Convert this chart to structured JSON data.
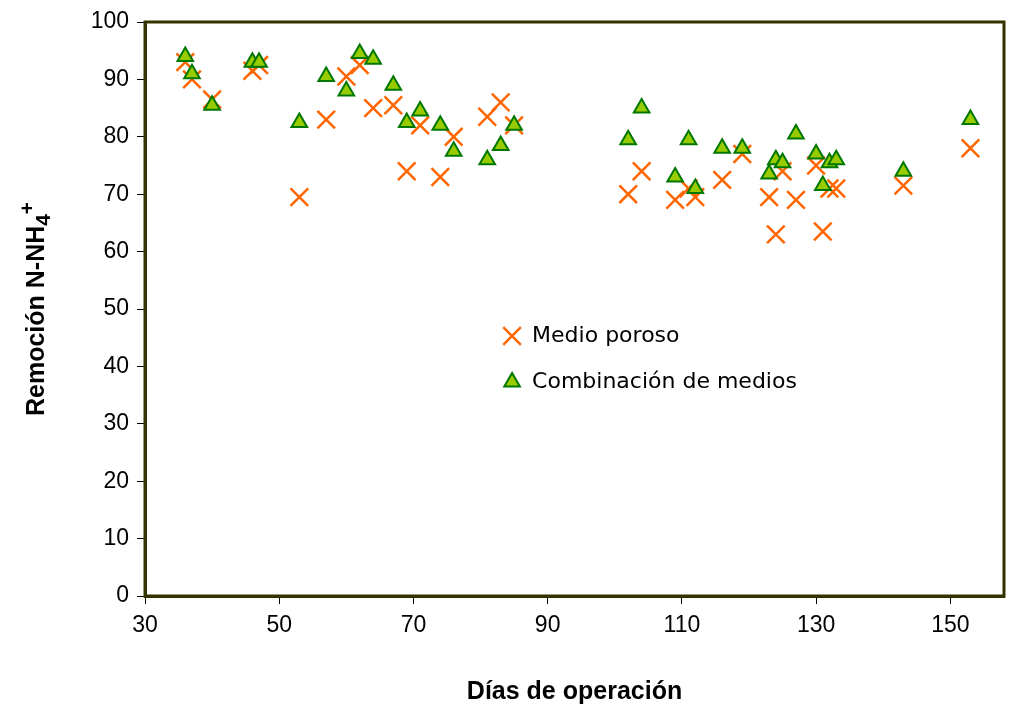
{
  "chart_data": {
    "type": "scatter",
    "xlabel": "Días de operación",
    "ylabel": "Remoción N-NH$_{4}$$^{+}$",
    "xlim": [
      30,
      158
    ],
    "xticks": [
      30,
      50,
      70,
      90,
      110,
      130,
      150
    ],
    "ylim": [
      0,
      100
    ],
    "yticks": [
      0,
      10,
      20,
      30,
      40,
      50,
      60,
      70,
      80,
      90,
      100
    ],
    "grid": false,
    "legend": "center",
    "series": [
      {
        "name": "Medio poroso",
        "color": "#ff6600",
        "marker": "cross",
        "x": [
          36,
          37,
          40,
          46,
          47,
          53,
          57,
          60,
          62,
          64,
          67,
          69,
          71,
          74,
          76,
          81,
          83,
          85,
          102,
          104,
          109,
          111,
          112,
          116,
          119,
          123,
          124,
          125,
          127,
          130,
          131,
          132,
          133,
          143,
          153
        ],
        "values": [
          93,
          90,
          86.5,
          91.5,
          92.5,
          69.5,
          83,
          90.5,
          92.5,
          85,
          85.5,
          74,
          82,
          73,
          80,
          83.5,
          86,
          82,
          70,
          74,
          69,
          71,
          69.5,
          72.5,
          77,
          69.5,
          63,
          74,
          69,
          75,
          63.5,
          71,
          71,
          71.5,
          78
        ]
      },
      {
        "name": "Combinación de medios",
        "color": "#99cc00",
        "marker": "triangle",
        "x": [
          36,
          37,
          40,
          46,
          47,
          53,
          57,
          60,
          62,
          64,
          67,
          69,
          71,
          74,
          76,
          81,
          83,
          85,
          102,
          104,
          109,
          111,
          112,
          116,
          119,
          123,
          124,
          125,
          127,
          130,
          131,
          132,
          133,
          143,
          153
        ],
        "values": [
          94,
          91,
          85.5,
          93,
          93,
          82.5,
          90.5,
          88,
          94.5,
          93.5,
          89,
          82.5,
          84.5,
          82,
          77.5,
          76,
          78.5,
          82,
          79.5,
          85,
          73,
          79.5,
          71,
          78,
          78,
          73.5,
          76,
          75.5,
          80.5,
          77,
          71.5,
          75.5,
          76,
          74,
          83
        ]
      }
    ]
  }
}
